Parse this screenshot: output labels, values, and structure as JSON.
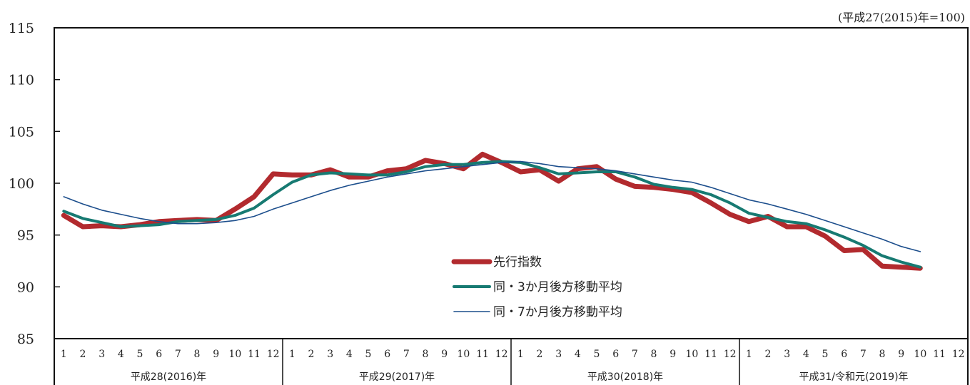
{
  "chart_data": {
    "type": "line",
    "base_note": "(平成27(2015)年=100)",
    "ylim": [
      85,
      115
    ],
    "yticks": [
      85,
      90,
      95,
      100,
      105,
      110,
      115
    ],
    "months": [
      "1",
      "2",
      "3",
      "4",
      "5",
      "6",
      "7",
      "8",
      "9",
      "10",
      "11",
      "12"
    ],
    "years": [
      "平成28(2016)年",
      "平成29(2017)年",
      "平成30(2018)年",
      "平成31/令和元(2019)年"
    ],
    "series": [
      {
        "name": "先行指数",
        "color": "#b22a2e",
        "values": [
          96.9,
          95.8,
          95.9,
          95.8,
          96.0,
          96.3,
          96.4,
          96.5,
          96.4,
          97.5,
          98.7,
          100.9,
          100.8,
          100.8,
          101.3,
          100.6,
          100.6,
          101.2,
          101.4,
          102.2,
          101.9,
          101.4,
          102.8,
          102.0,
          101.1,
          101.3,
          100.2,
          101.4,
          101.6,
          100.4,
          99.7,
          99.6,
          99.4,
          99.1,
          98.1,
          97.0,
          96.3,
          96.8,
          95.8,
          95.8,
          94.9,
          93.5,
          93.6,
          92.0,
          91.9,
          91.8
        ]
      },
      {
        "name": "同・3か月後方移動平均",
        "color": "#177a72",
        "values": [
          97.3,
          96.6,
          96.2,
          95.8,
          95.9,
          96.0,
          96.3,
          96.4,
          96.5,
          96.9,
          97.6,
          98.9,
          100.1,
          100.8,
          101.0,
          100.9,
          100.8,
          100.8,
          101.1,
          101.6,
          101.8,
          101.8,
          102.0,
          102.1,
          102.0,
          101.5,
          100.9,
          101.0,
          101.1,
          101.1,
          100.6,
          99.9,
          99.6,
          99.4,
          98.9,
          98.1,
          97.1,
          96.7,
          96.3,
          96.1,
          95.5,
          94.8,
          94.0,
          93.0,
          92.4,
          91.9
        ]
      },
      {
        "name": "同・7か月後方移動平均",
        "color": "#1c4e8c",
        "values": [
          98.7,
          98.0,
          97.4,
          97.0,
          96.6,
          96.3,
          96.1,
          96.1,
          96.2,
          96.4,
          96.8,
          97.5,
          98.1,
          98.7,
          99.3,
          99.8,
          100.2,
          100.6,
          100.9,
          101.2,
          101.4,
          101.6,
          101.8,
          102.0,
          102.1,
          101.9,
          101.6,
          101.5,
          101.4,
          101.2,
          100.9,
          100.6,
          100.3,
          100.1,
          99.6,
          99.0,
          98.4,
          98.0,
          97.5,
          97.0,
          96.4,
          95.8,
          95.2,
          94.6,
          93.9,
          93.4
        ]
      }
    ]
  }
}
